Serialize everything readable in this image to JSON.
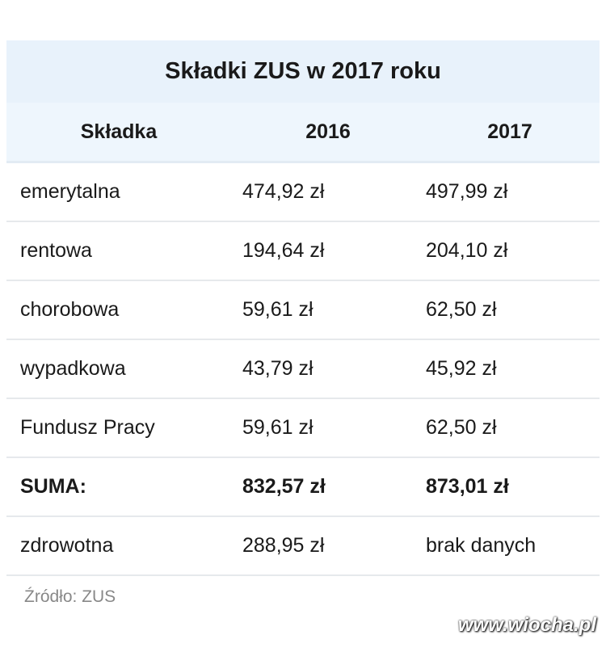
{
  "title": "Składki ZUS w 2017 roku",
  "table": {
    "header": [
      "Składka",
      "2016",
      "2017"
    ],
    "rows": [
      [
        "emerytalna",
        "474,92 zł",
        "497,99 zł"
      ],
      [
        "rentowa",
        "194,64 zł",
        "204,10 zł"
      ],
      [
        "chorobowa",
        "59,61 zł",
        "62,50 zł"
      ],
      [
        "wypadkowa",
        "43,79 zł",
        "45,92 zł"
      ],
      [
        "Fundusz Pracy",
        "59,61 zł",
        "62,50 zł"
      ],
      [
        "SUMA:",
        "832,57 zł",
        "873,01 zł"
      ],
      [
        "zdrowotna",
        "288,95 zł",
        "brak danych"
      ]
    ]
  },
  "source": "Źródło: ZUS",
  "watermark": "www.wiocha.pl"
}
